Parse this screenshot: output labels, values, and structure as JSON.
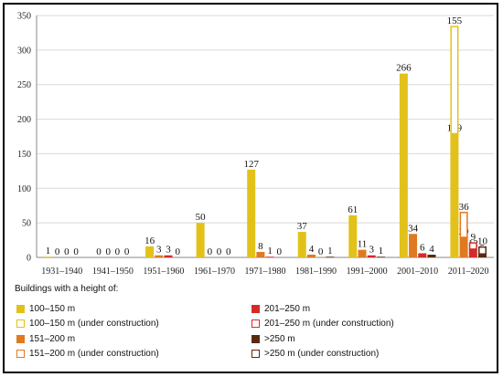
{
  "chart_data": {
    "type": "bar",
    "categories": [
      "1931–1940",
      "1941–1950",
      "1951–1960",
      "1961–1970",
      "1971–1980",
      "1981–1990",
      "1991–2000",
      "2001–2010",
      "2011–2020"
    ],
    "ylim": [
      0,
      350
    ],
    "yticks": [
      0,
      50,
      100,
      150,
      200,
      250,
      300,
      350
    ],
    "grid": true,
    "legend_title": "Buildings with a height of:",
    "legend_placement": "bottom",
    "series": [
      {
        "name": "100–150 m",
        "color": "#E2C21A",
        "values": [
          1,
          0,
          16,
          50,
          127,
          37,
          61,
          266,
          179
        ],
        "under_construction": false
      },
      {
        "name": "151–200 m",
        "color": "#E07A22",
        "values": [
          0,
          0,
          3,
          0,
          8,
          4,
          11,
          34,
          29
        ],
        "under_construction": false
      },
      {
        "name": "201–250 m",
        "color": "#D62A2A",
        "values": [
          0,
          0,
          3,
          0,
          1,
          0,
          3,
          6,
          12
        ],
        "under_construction": false
      },
      {
        "name": ">250 m",
        "color": "#5A2A0E",
        "values": [
          0,
          0,
          0,
          0,
          0,
          1,
          1,
          4,
          5
        ],
        "under_construction": false
      },
      {
        "name": "100–150 m (under construction)",
        "color": "#E2C21A",
        "values": [
          null,
          null,
          null,
          null,
          null,
          null,
          null,
          null,
          155
        ],
        "under_construction": true,
        "stack_on": 0
      },
      {
        "name": "151–200 m (under construction)",
        "color": "#E07A22",
        "values": [
          null,
          null,
          null,
          null,
          null,
          null,
          null,
          null,
          36
        ],
        "under_construction": true,
        "stack_on": 1
      },
      {
        "name": "201–250 m (under construction)",
        "color": "#D62A2A",
        "values": [
          null,
          null,
          null,
          null,
          null,
          null,
          null,
          null,
          9
        ],
        "under_construction": true,
        "stack_on": 2
      },
      {
        "name": ">250 m (under construction)",
        "color": "#5A2A0E",
        "values": [
          null,
          null,
          null,
          null,
          null,
          null,
          null,
          null,
          10
        ],
        "under_construction": true,
        "stack_on": 3
      }
    ]
  },
  "legend": {
    "title": "Buildings with a height of:",
    "items": [
      {
        "label": "100–150 m",
        "color": "#E2C21A",
        "outline": false
      },
      {
        "label": "201–250 m",
        "color": "#D62A2A",
        "outline": false
      },
      {
        "label": "100–150 m (under construction)",
        "color": "#E2C21A",
        "outline": true
      },
      {
        "label": "201–250 m (under construction)",
        "color": "#D62A2A",
        "outline": true
      },
      {
        "label": "151–200 m",
        "color": "#E07A22",
        "outline": false
      },
      {
        "label": ">250 m",
        "color": "#5A2A0E",
        "outline": false
      },
      {
        "label": "151–200 m (under construction)",
        "color": "#E07A22",
        "outline": true
      },
      {
        "label": ">250 m (under construction)",
        "color": "#5A2A0E",
        "outline": true
      }
    ]
  }
}
